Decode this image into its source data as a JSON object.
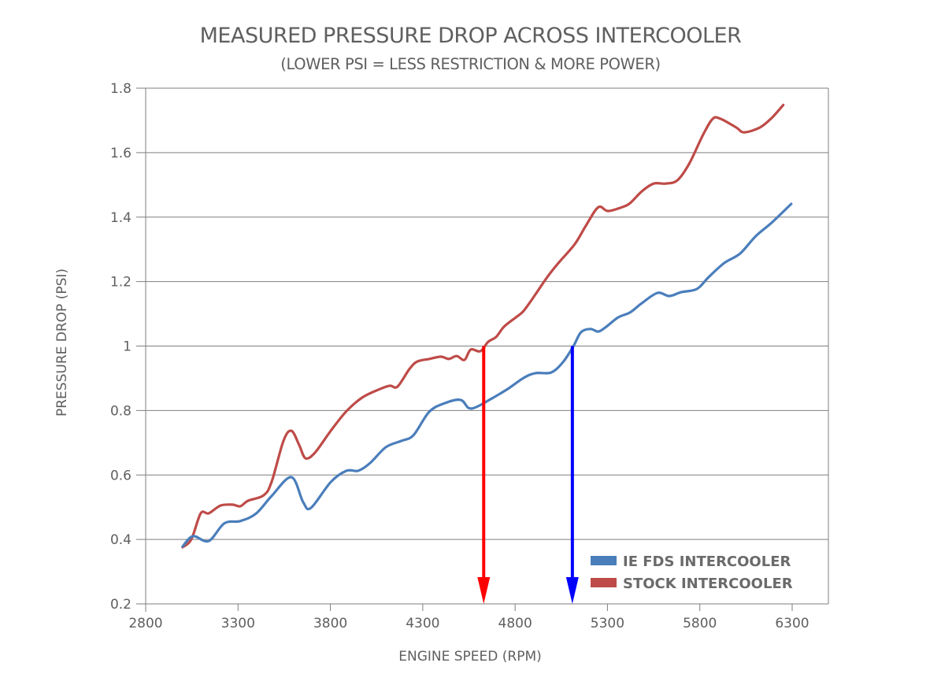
{
  "chart_data": {
    "type": "line",
    "title": "MEASURED PRESSURE DROP ACROSS INTERCOOLER",
    "subtitle": "(LOWER PSI = LESS RESTRICTION & MORE POWER)",
    "xlabel": "ENGINE SPEED (RPM)",
    "ylabel": "PRESSURE DROP (PSI)",
    "xlim": [
      2800,
      6500
    ],
    "ylim": [
      0.2,
      1.8
    ],
    "x_ticks": [
      2800,
      3300,
      3800,
      4300,
      4800,
      5300,
      5800,
      6300
    ],
    "x_tick_labels": [
      "2800",
      "3300",
      "3800",
      "4300",
      "4800",
      "5300",
      "5800",
      "6300"
    ],
    "y_ticks": [
      0.2,
      0.4,
      0.6,
      0.8,
      1.0,
      1.2,
      1.4,
      1.6,
      1.8
    ],
    "y_tick_labels": [
      "0.2",
      "0.4",
      "0.6",
      "0.8",
      "1",
      "1.2",
      "1.4",
      "1.6",
      "1.8"
    ],
    "grid": "horizontal",
    "legend_position": "bottom-right",
    "series": [
      {
        "name": "IE FDS INTERCOOLER",
        "color": "#4a7ebb",
        "x": [
          3000,
          3056,
          3141,
          3226,
          3312,
          3397,
          3482,
          3589,
          3653,
          3695,
          3802,
          3887,
          3951,
          4015,
          4100,
          4185,
          4249,
          4335,
          4420,
          4505,
          4548,
          4591,
          4676,
          4761,
          4846,
          4910,
          4995,
          5059,
          5115,
          5157,
          5208,
          5251,
          5294,
          5358,
          5422,
          5486,
          5571,
          5635,
          5699,
          5784,
          5848,
          5933,
          6018,
          6103,
          6188,
          6295
        ],
        "y": [
          0.378,
          0.41,
          0.395,
          0.45,
          0.457,
          0.48,
          0.535,
          0.593,
          0.515,
          0.498,
          0.578,
          0.613,
          0.613,
          0.637,
          0.686,
          0.706,
          0.723,
          0.796,
          0.823,
          0.833,
          0.808,
          0.811,
          0.838,
          0.867,
          0.901,
          0.916,
          0.918,
          0.95,
          0.999,
          1.043,
          1.053,
          1.045,
          1.06,
          1.089,
          1.104,
          1.133,
          1.165,
          1.155,
          1.167,
          1.177,
          1.214,
          1.258,
          1.287,
          1.341,
          1.382,
          1.441
        ]
      },
      {
        "name": "STOCK INTERCOOLER",
        "color": "#be4b48",
        "x": [
          3000,
          3047,
          3098,
          3141,
          3205,
          3269,
          3312,
          3354,
          3439,
          3482,
          3546,
          3589,
          3631,
          3665,
          3716,
          3802,
          3887,
          3972,
          4057,
          4121,
          4163,
          4227,
          4270,
          4335,
          4398,
          4441,
          4484,
          4526,
          4560,
          4612,
          4654,
          4697,
          4740,
          4804,
          4846,
          4910,
          4974,
          5038,
          5123,
          5187,
          5251,
          5302,
          5379,
          5422,
          5486,
          5550,
          5614,
          5678,
          5742,
          5818,
          5870,
          5912,
          5997,
          6040,
          6125,
          6188,
          6252
        ],
        "y": [
          0.376,
          0.4,
          0.481,
          0.481,
          0.505,
          0.508,
          0.503,
          0.52,
          0.537,
          0.579,
          0.706,
          0.737,
          0.693,
          0.652,
          0.669,
          0.737,
          0.798,
          0.84,
          0.864,
          0.877,
          0.874,
          0.928,
          0.952,
          0.96,
          0.967,
          0.96,
          0.969,
          0.957,
          0.989,
          0.984,
          1.013,
          1.028,
          1.06,
          1.089,
          1.109,
          1.16,
          1.214,
          1.26,
          1.316,
          1.377,
          1.431,
          1.419,
          1.431,
          1.443,
          1.48,
          1.504,
          1.504,
          1.514,
          1.565,
          1.656,
          1.705,
          1.705,
          1.678,
          1.663,
          1.678,
          1.707,
          1.748
        ]
      }
    ],
    "annotations": [
      {
        "type": "arrow",
        "name": "stock-1psi-marker",
        "color": "#ff0000",
        "x": 4630,
        "y_from": 1.0,
        "y_to": 0.2
      },
      {
        "type": "arrow",
        "name": "fds-1psi-marker",
        "color": "#0000ff",
        "x": 5110,
        "y_from": 1.0,
        "y_to": 0.2
      }
    ]
  },
  "style": {
    "grid_color": "#7f7f7f",
    "axis_color": "#7f7f7f",
    "text_color": "#5f5f5f"
  }
}
